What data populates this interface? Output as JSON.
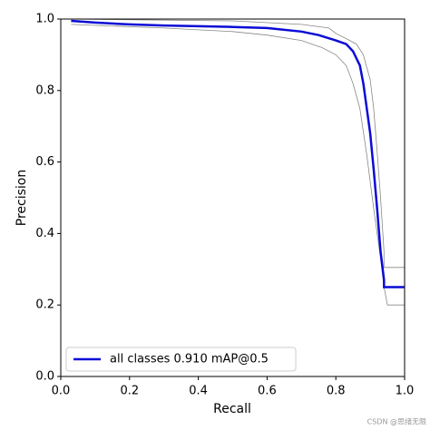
{
  "chart_data": {
    "type": "line",
    "xlabel": "Recall",
    "ylabel": "Precision",
    "xlim": [
      0,
      1
    ],
    "ylim": [
      0,
      1
    ],
    "xticks": [
      {
        "value": 0,
        "label": "0.0"
      },
      0.2,
      0.4,
      0.6,
      0.8,
      {
        "value": 1,
        "label": "1.0"
      }
    ],
    "yticks": [
      {
        "value": 0,
        "label": "0.0"
      },
      0.2,
      0.4,
      0.6,
      0.8,
      {
        "value": 1,
        "label": "1.0"
      }
    ],
    "legend": "lower left",
    "watermark": "CSDN @思绪无限",
    "series": [
      {
        "color": "#888888",
        "x": [
          0.03,
          0.5,
          0.7,
          0.78,
          0.8,
          0.84,
          0.86,
          0.88,
          0.9,
          0.91,
          0.92,
          0.93,
          0.94,
          0.94,
          1.0
        ],
        "values": [
          1.0,
          0.995,
          0.985,
          0.975,
          0.96,
          0.94,
          0.93,
          0.9,
          0.83,
          0.75,
          0.63,
          0.5,
          0.35,
          0.305,
          0.305
        ]
      },
      {
        "color": "#888888",
        "x": [
          0.03,
          0.3,
          0.5,
          0.6,
          0.7,
          0.76,
          0.8,
          0.83,
          0.85,
          0.87,
          0.89,
          0.91,
          0.93,
          0.94,
          0.95,
          1.0
        ],
        "values": [
          0.985,
          0.975,
          0.965,
          0.955,
          0.94,
          0.92,
          0.9,
          0.87,
          0.82,
          0.75,
          0.62,
          0.47,
          0.33,
          0.25,
          0.2,
          0.2
        ]
      },
      {
        "name": "all classes 0.910 mAP@0.5",
        "color": "#0b0bd6",
        "x": [
          0.03,
          0.1,
          0.2,
          0.3,
          0.4,
          0.5,
          0.6,
          0.7,
          0.75,
          0.8,
          0.83,
          0.85,
          0.87,
          0.88,
          0.89,
          0.9,
          0.91,
          0.92,
          0.93,
          0.94,
          0.94,
          1.0
        ],
        "values": [
          0.995,
          0.99,
          0.985,
          0.982,
          0.98,
          0.978,
          0.975,
          0.965,
          0.955,
          0.94,
          0.93,
          0.91,
          0.87,
          0.82,
          0.75,
          0.68,
          0.58,
          0.47,
          0.35,
          0.27,
          0.25,
          0.25
        ]
      }
    ]
  }
}
